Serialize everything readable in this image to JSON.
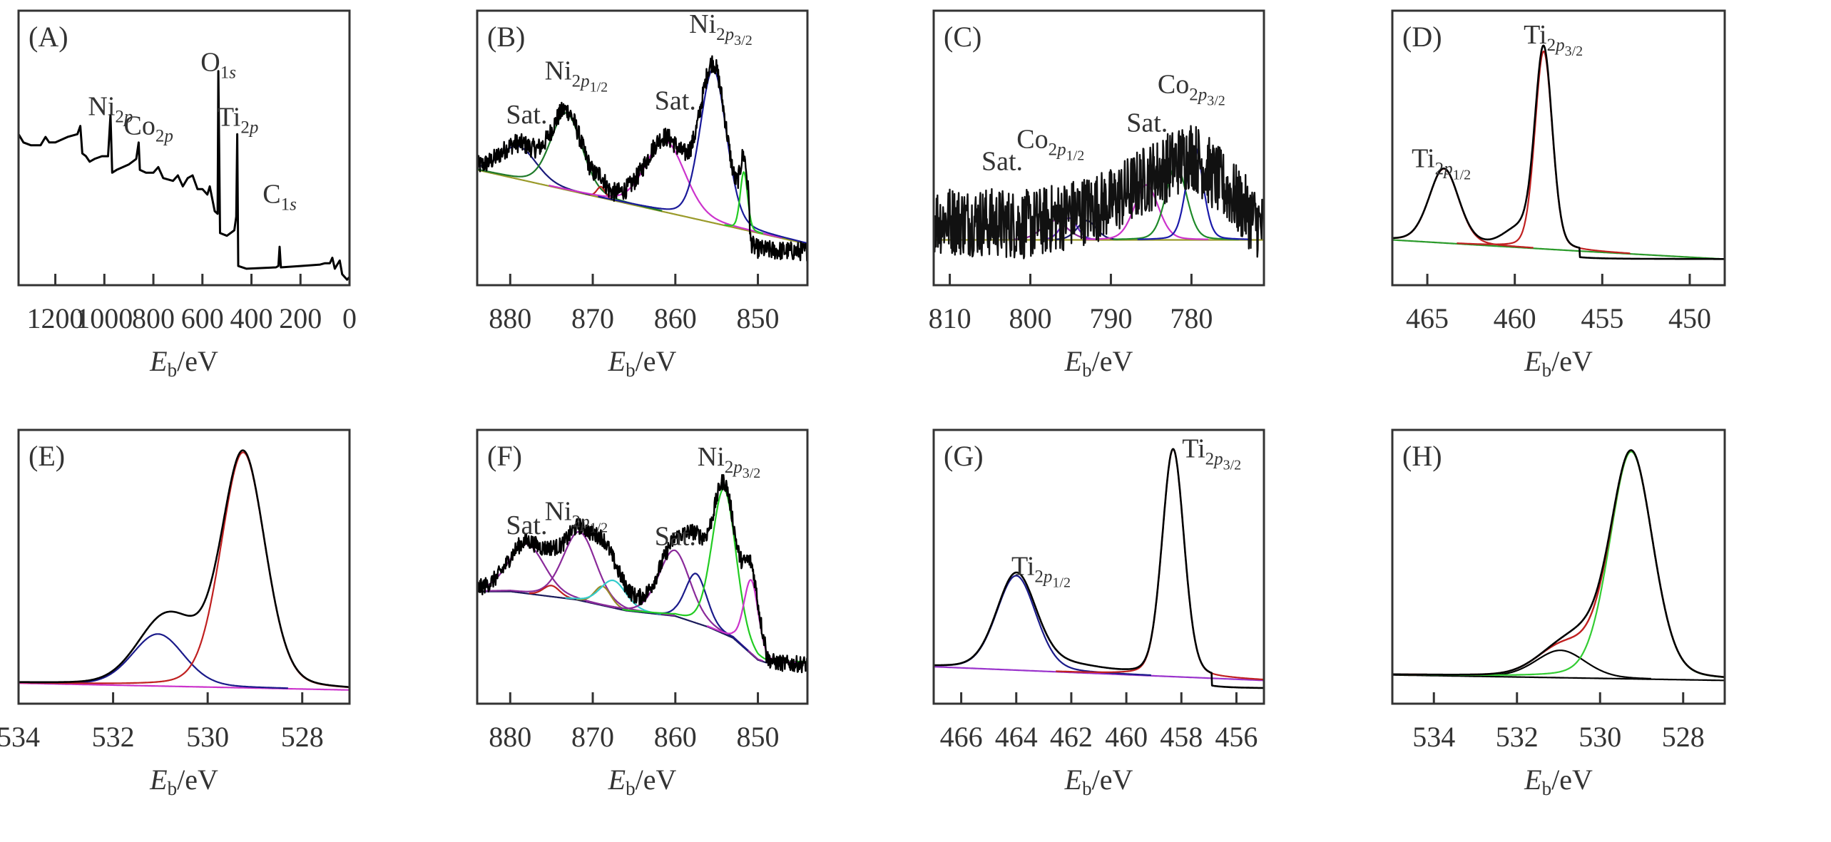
{
  "figure": {
    "xlabel_main": "E",
    "xlabel_sub": "b",
    "xlabel_unit": "/eV"
  },
  "chart_data": [
    {
      "id": "A",
      "type": "line",
      "title": "(A)",
      "xlabel": "Eb/eV",
      "ylabel": "",
      "xlim": [
        1350,
        0
      ],
      "ylim": [
        0,
        1
      ],
      "xticks": [
        1200,
        1000,
        800,
        600,
        400,
        200,
        0
      ],
      "grid": false,
      "annotations": [
        {
          "main": "Ni",
          "sub": "2p",
          "x": 975,
          "y": 0.62
        },
        {
          "main": "Co",
          "sub": "2p",
          "x": 820,
          "y": 0.55
        },
        {
          "main": "O",
          "sub": "1s",
          "x": 535,
          "y": 0.78
        },
        {
          "main": "Ti",
          "sub": "2p",
          "x": 455,
          "y": 0.58
        },
        {
          "main": "C",
          "sub": "1s",
          "x": 285,
          "y": 0.3
        }
      ],
      "series": [
        {
          "name": "survey",
          "color": "#000000",
          "kind": "survey",
          "points": [
            [
              1350,
              0.55
            ],
            [
              1330,
              0.52
            ],
            [
              1300,
              0.51
            ],
            [
              1260,
              0.51
            ],
            [
              1240,
              0.54
            ],
            [
              1225,
              0.52
            ],
            [
              1200,
              0.52
            ],
            [
              1150,
              0.54
            ],
            [
              1110,
              0.55
            ],
            [
              1098,
              0.58
            ],
            [
              1090,
              0.48
            ],
            [
              1075,
              0.47
            ],
            [
              1060,
              0.45
            ],
            [
              1040,
              0.46
            ],
            [
              1010,
              0.47
            ],
            [
              985,
              0.47
            ],
            [
              975,
              0.62
            ],
            [
              968,
              0.41
            ],
            [
              950,
              0.42
            ],
            [
              900,
              0.44
            ],
            [
              870,
              0.46
            ],
            [
              860,
              0.52
            ],
            [
              855,
              0.42
            ],
            [
              830,
              0.41
            ],
            [
              800,
              0.41
            ],
            [
              780,
              0.43
            ],
            [
              760,
              0.39
            ],
            [
              720,
              0.38
            ],
            [
              700,
              0.4
            ],
            [
              680,
              0.36
            ],
            [
              660,
              0.39
            ],
            [
              640,
              0.4
            ],
            [
              620,
              0.35
            ],
            [
              600,
              0.35
            ],
            [
              580,
              0.33
            ],
            [
              570,
              0.36
            ],
            [
              550,
              0.27
            ],
            [
              538,
              0.26
            ],
            [
              535,
              0.78
            ],
            [
              528,
              0.19
            ],
            [
              500,
              0.18
            ],
            [
              470,
              0.2
            ],
            [
              462,
              0.25
            ],
            [
              458,
              0.55
            ],
            [
              454,
              0.07
            ],
            [
              420,
              0.06
            ],
            [
              300,
              0.065
            ],
            [
              290,
              0.07
            ],
            [
              285,
              0.14
            ],
            [
              280,
              0.065
            ],
            [
              200,
              0.07
            ],
            [
              120,
              0.075
            ],
            [
              100,
              0.08
            ],
            [
              80,
              0.08
            ],
            [
              70,
              0.1
            ],
            [
              60,
              0.06
            ],
            [
              40,
              0.09
            ],
            [
              30,
              0.04
            ],
            [
              10,
              0.02
            ],
            [
              0,
              0.03
            ]
          ]
        }
      ]
    },
    {
      "id": "B",
      "type": "line",
      "title": "(B)",
      "xlabel": "Eb/eV",
      "xlim": [
        884,
        844
      ],
      "ylim": [
        0,
        1
      ],
      "xticks": [
        880,
        870,
        860,
        850
      ],
      "grid": false,
      "annotations": [
        {
          "main": "Sat.",
          "sub": "",
          "x": 878,
          "y": 0.59
        },
        {
          "main": "Ni",
          "sub": "2p",
          "sub2": "1/2",
          "x": 872,
          "y": 0.75
        },
        {
          "main": "Sat.",
          "sub": "",
          "x": 860,
          "y": 0.64
        },
        {
          "main": "Ni",
          "sub": "2p",
          "sub2": "3/2",
          "x": 854.5,
          "y": 0.92
        }
      ],
      "baseline": {
        "x0": 884,
        "y0": 0.42,
        "x1": 844,
        "y1": 0.15,
        "color": "#9a9a2a"
      },
      "peaks": [
        {
          "center": 879,
          "height": 0.12,
          "width": 2.2,
          "color": "#1a1a7a"
        },
        {
          "center": 873.2,
          "height": 0.28,
          "width": 1.9,
          "color": "#1f7a2a"
        },
        {
          "center": 869,
          "height": 0.04,
          "width": 0.5,
          "color": "#c02020"
        },
        {
          "center": 861.2,
          "height": 0.26,
          "width": 2.4,
          "color": "#cc33cc"
        },
        {
          "center": 855.4,
          "height": 0.56,
          "width": 1.6,
          "color": "#1a1a9a"
        },
        {
          "center": 851.7,
          "height": 0.21,
          "width": 0.45,
          "color": "#22cc22"
        }
      ],
      "noise": 0.035,
      "raw_tail": {
        "from": 851,
        "level": 0.12
      }
    },
    {
      "id": "C",
      "type": "line",
      "title": "(C)",
      "xlabel": "Eb/eV",
      "xlim": [
        812,
        771
      ],
      "ylim": [
        0,
        1
      ],
      "xticks": [
        810,
        800,
        790,
        780
      ],
      "grid": false,
      "annotations": [
        {
          "main": "Sat.",
          "sub": "",
          "x": 803.5,
          "y": 0.42
        },
        {
          "main": "Co",
          "sub": "2p",
          "sub2": "1/2",
          "x": 797.5,
          "y": 0.5
        },
        {
          "main": "Sat.",
          "sub": "",
          "x": 785.5,
          "y": 0.56
        },
        {
          "main": "Co",
          "sub": "2p",
          "sub2": "3/2",
          "x": 780,
          "y": 0.7
        }
      ],
      "baseline": {
        "x0": 812,
        "y0": 0.165,
        "x1": 771,
        "y1": 0.165,
        "color": "#9a9a2a"
      },
      "peaks": [
        {
          "center": 797,
          "height": 0.07,
          "width": 1.6,
          "color": "#8a2a9a"
        },
        {
          "center": 795.2,
          "height": 0.08,
          "width": 1.0,
          "color": "#6a2aca"
        },
        {
          "center": 793,
          "height": 0.07,
          "width": 1.2,
          "color": "#1a1a6a"
        },
        {
          "center": 785.6,
          "height": 0.2,
          "width": 1.5,
          "color": "#cc33cc"
        },
        {
          "center": 781.9,
          "height": 0.27,
          "width": 1.3,
          "color": "#1f8a2a"
        },
        {
          "center": 779.6,
          "height": 0.34,
          "width": 1.05,
          "color": "#1a1aaa"
        }
      ],
      "noise": 0.08,
      "raw_envelope": [
        [
          812,
          0.24
        ],
        [
          800,
          0.22
        ],
        [
          790,
          0.3
        ],
        [
          786,
          0.38
        ],
        [
          780,
          0.48
        ],
        [
          775,
          0.33
        ],
        [
          771,
          0.2
        ]
      ]
    },
    {
      "id": "D",
      "type": "line",
      "title": "(D)",
      "xlabel": "Eb/eV",
      "xlim": [
        467,
        448
      ],
      "ylim": [
        0,
        1
      ],
      "xticks": [
        465,
        460,
        455,
        450
      ],
      "grid": false,
      "annotations": [
        {
          "main": "Ti",
          "sub": "2p",
          "sub2": "1/2",
          "x": 464.2,
          "y": 0.43
        },
        {
          "main": "Ti",
          "sub": "2p",
          "sub2": "3/2",
          "x": 457.8,
          "y": 0.88
        }
      ],
      "baseline": {
        "x0": 467,
        "y0": 0.165,
        "x1": 456.5,
        "y1": 0.125,
        "color": "#2a9a2a"
      },
      "peaks": [
        {
          "center": 464.05,
          "height": 0.27,
          "width": 0.85,
          "color": "#c02020"
        },
        {
          "center": 458.35,
          "height": 0.72,
          "width": 0.5,
          "color": "#c02020"
        }
      ],
      "fit_tail": {
        "from": 456.5,
        "y0": 0.125,
        "to": 448,
        "y1": 0.095
      },
      "raw_tail": {
        "from": 456.3,
        "level": 0.095
      },
      "shoulder": {
        "center": 459.7,
        "height": 0.06,
        "width": 0.9
      }
    },
    {
      "id": "E",
      "type": "line",
      "title": "(E)",
      "xlabel": "Eb/eV",
      "xlim": [
        534,
        527
      ],
      "ylim": [
        0,
        1
      ],
      "xticks": [
        534,
        532,
        530,
        528
      ],
      "grid": false,
      "annotations": [],
      "baseline": {
        "x0": 534,
        "y0": 0.075,
        "x1": 527,
        "y1": 0.05,
        "color": "#cc33cc"
      },
      "peaks": [
        {
          "center": 531.05,
          "height": 0.19,
          "width": 0.55,
          "color": "#1a1a8a"
        },
        {
          "center": 529.25,
          "height": 0.86,
          "width": 0.47,
          "color": "#c02020"
        }
      ],
      "raw_extra": {
        "center": 530.5,
        "height": 0.1,
        "width": 0.45
      }
    },
    {
      "id": "F",
      "type": "line",
      "title": "(F)",
      "xlabel": "Eb/eV",
      "xlim": [
        884,
        844
      ],
      "ylim": [
        0,
        1
      ],
      "xticks": [
        880,
        870,
        860,
        850
      ],
      "grid": false,
      "annotations": [
        {
          "main": "Sat.",
          "sub": "",
          "x": 878,
          "y": 0.62
        },
        {
          "main": "Ni",
          "sub": "2p",
          "sub2": "1/2",
          "x": 872,
          "y": 0.67
        },
        {
          "main": "Sat.",
          "sub": "",
          "x": 860,
          "y": 0.58
        },
        {
          "main": "Ni",
          "sub": "2p",
          "sub2": "3/2",
          "x": 853.5,
          "y": 0.87
        }
      ],
      "baseline_curve": [
        [
          884,
          0.41
        ],
        [
          880,
          0.41
        ],
        [
          872,
          0.38
        ],
        [
          866,
          0.34
        ],
        [
          860,
          0.32
        ],
        [
          856,
          0.28
        ],
        [
          853,
          0.24
        ],
        [
          850,
          0.16
        ],
        [
          849,
          0.15
        ]
      ],
      "baseline_color": "#1a1a5a",
      "peaks": [
        {
          "center": 878,
          "height": 0.18,
          "width": 2.2,
          "color": "#8a2a9a"
        },
        {
          "center": 871.6,
          "height": 0.25,
          "width": 2.0,
          "color": "#8a2a9a"
        },
        {
          "center": 875,
          "height": 0.04,
          "width": 1.0,
          "color": "#c02020"
        },
        {
          "center": 868.8,
          "height": 0.07,
          "width": 1.0,
          "color": "#9a8a2a"
        },
        {
          "center": 867.5,
          "height": 0.1,
          "width": 1.6,
          "color": "#33cccc"
        },
        {
          "center": 860.1,
          "height": 0.24,
          "width": 1.9,
          "color": "#8a2a9a"
        },
        {
          "center": 857.5,
          "height": 0.18,
          "width": 1.3,
          "color": "#1a1a8a"
        },
        {
          "center": 854.1,
          "height": 0.53,
          "width": 1.45,
          "color": "#22cc22"
        },
        {
          "center": 850.8,
          "height": 0.27,
          "width": 0.9,
          "color": "#cc33cc"
        }
      ],
      "noise": 0.03,
      "raw_tail": {
        "from": 849,
        "level": 0.14
      }
    },
    {
      "id": "G",
      "type": "line",
      "title": "(G)",
      "xlabel": "Eb/eV",
      "xlim": [
        467,
        455
      ],
      "ylim": [
        0,
        1
      ],
      "xticks": [
        466,
        464,
        462,
        460,
        458,
        456
      ],
      "grid": false,
      "annotations": [
        {
          "main": "Ti",
          "sub": "2p",
          "sub2": "1/2",
          "x": 463.1,
          "y": 0.47
        },
        {
          "main": "Ti",
          "sub": "2p",
          "sub2": "3/2",
          "x": 456.9,
          "y": 0.9
        }
      ],
      "baseline": {
        "x0": 467,
        "y0": 0.135,
        "x1": 455,
        "y1": 0.085,
        "color": "#9a33cc"
      },
      "peaks": [
        {
          "center": 464.0,
          "height": 0.345,
          "width": 0.72,
          "color": "#1a1a8a"
        },
        {
          "center": 458.3,
          "height": 0.83,
          "width": 0.4,
          "color": "#c02020"
        }
      ],
      "raw_extra": {
        "center": 462.3,
        "height": 0.025,
        "width": 1.3
      },
      "raw_tail": {
        "from": 456.9,
        "level": 0.055
      }
    },
    {
      "id": "H",
      "type": "line",
      "title": "(H)",
      "xlabel": "Eb/eV",
      "xlim": [
        535,
        527
      ],
      "ylim": [
        0,
        1
      ],
      "xticks": [
        534,
        532,
        530,
        528
      ],
      "grid": false,
      "annotations": [],
      "baseline": {
        "x0": 535,
        "y0": 0.105,
        "x1": 527,
        "y1": 0.085,
        "color": "#000000"
      },
      "peaks": [
        {
          "center": 530.95,
          "height": 0.1,
          "width": 0.6,
          "color": "#000000"
        },
        {
          "center": 529.25,
          "height": 0.83,
          "width": 0.52,
          "color": "#33cc33"
        }
      ],
      "fit_color": "#c02020",
      "raw_extra": {
        "center": 530.4,
        "height": 0.055,
        "width": 0.4
      }
    }
  ]
}
